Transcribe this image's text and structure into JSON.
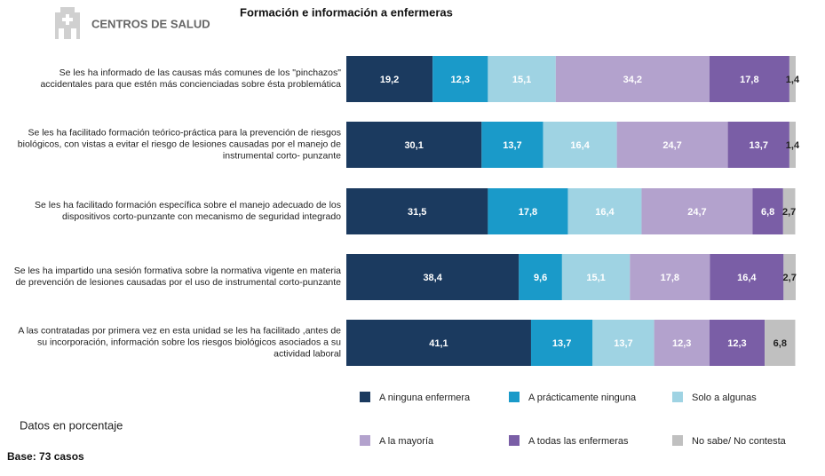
{
  "header": {
    "brand": "CENTROS DE SALUD"
  },
  "chart_data": {
    "type": "stacked-bar-horizontal",
    "title": "Formación e información a enfermeras",
    "categories": [
      "Se les ha informado de las causas más comunes de los \"pinchazos\" accidentales para que estén más concienciadas sobre ésta problemática",
      "Se les ha facilitado formación teórico-práctica para la prevención de riesgos biológicos, con vistas a evitar el riesgo de lesiones causadas por el manejo de instrumental corto- punzante",
      "Se les ha facilitado formación específica sobre el manejo adecuado de los dispositivos corto-punzante con mecanismo de seguridad integrado",
      "Se les ha impartido una sesión formativa sobre la normativa vigente en materia de prevención de lesiones causadas por el uso de instrumental corto-punzante",
      "A las contratadas por primera vez en esta unidad se les ha facilitado ,antes de su incorporación, información sobre los riesgos biológicos asociados a su actividad laboral"
    ],
    "xlim": [
      0,
      100
    ],
    "series": [
      {
        "name": "A ninguna enfermera",
        "color": "#1b3a5f",
        "values": [
          19.2,
          30.1,
          31.5,
          38.4,
          41.1
        ],
        "value_labels": [
          "19,2",
          "30,1",
          "31,5",
          "38,4",
          "41,1"
        ]
      },
      {
        "name": "A prácticamente ninguna",
        "color": "#1a9ac9",
        "values": [
          12.3,
          13.7,
          17.8,
          9.6,
          13.7
        ],
        "value_labels": [
          "12,3",
          "13,7",
          "17,8",
          "9,6",
          "13,7"
        ]
      },
      {
        "name": "Solo a algunas",
        "color": "#9fd3e3",
        "values": [
          15.1,
          16.4,
          16.4,
          15.1,
          13.7
        ],
        "value_labels": [
          "15,1",
          "16,4",
          "16,4",
          "15,1",
          "13,7"
        ]
      },
      {
        "name": "A la mayoría",
        "color": "#b3a2cd",
        "values": [
          34.2,
          24.7,
          24.7,
          17.8,
          12.3
        ],
        "value_labels": [
          "34,2",
          "24,7",
          "24,7",
          "17,8",
          "12,3"
        ]
      },
      {
        "name": "A todas las enfermeras",
        "color": "#7a5ea6",
        "values": [
          17.8,
          13.7,
          6.8,
          16.4,
          12.3
        ],
        "value_labels": [
          "17,8",
          "13,7",
          "6,8",
          "16,4",
          "12,3"
        ]
      },
      {
        "name": "No sabe/ No contesta",
        "color": "#c0c0c0",
        "values": [
          1.4,
          1.4,
          2.7,
          2.7,
          6.8
        ],
        "value_labels": [
          "1,4",
          "1,4",
          "2,7",
          "2,7",
          "6,8"
        ]
      }
    ],
    "note": "Datos en porcentaje",
    "base": "Base: 73 casos"
  }
}
